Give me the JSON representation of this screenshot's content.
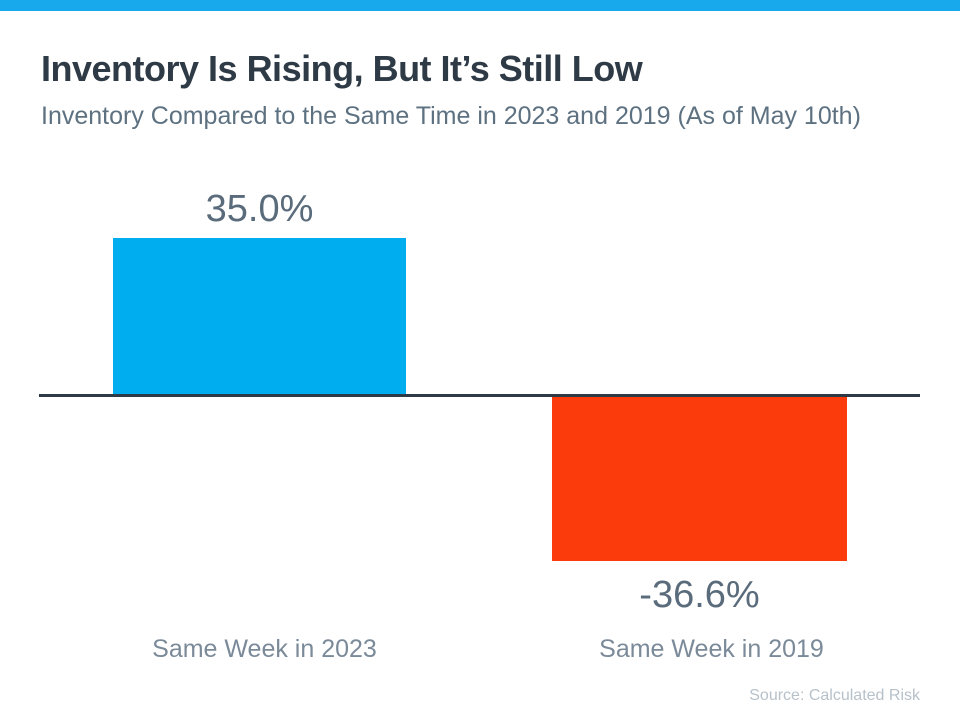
{
  "slide": {
    "accent_bar_color": "#18a9ed",
    "title": "Inventory Is Rising, But It’s Still Low",
    "subtitle": "Inventory Compared to the Same Time in 2023 and 2019 (As of May 10th)",
    "source": "Source: Calculated Risk"
  },
  "chart_data": {
    "type": "bar",
    "title": "Inventory Is Rising, But It’s Still Low",
    "subtitle": "Inventory Compared to the Same Time in 2023 and 2019 (As of May 10th)",
    "categories": [
      "Same Week in 2023",
      "Same Week in 2019"
    ],
    "values": [
      35.0,
      -36.6
    ],
    "value_labels": [
      "35.0%",
      "-36.6%"
    ],
    "bar_colors": [
      "#00aeef",
      "#fb3b0c"
    ],
    "baseline_color": "#2e3a46",
    "value_label_color": "#5a6b7b",
    "category_label_color": "#7b8a99",
    "xlabel": "",
    "ylabel": "",
    "ylim": [
      -40,
      40
    ],
    "grid": false,
    "legend": false,
    "source": "Source: Calculated Risk"
  }
}
